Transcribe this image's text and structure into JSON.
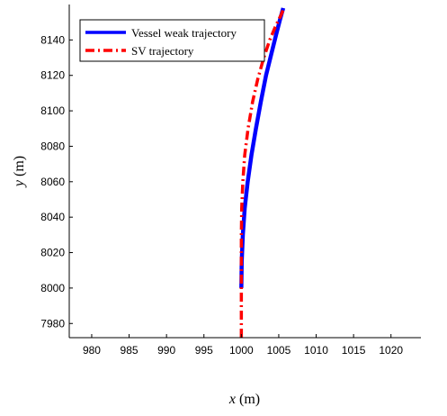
{
  "chart_data": {
    "type": "line",
    "title": "",
    "xlabel": {
      "var": "x",
      "unit": "(m)"
    },
    "ylabel": {
      "var": "y",
      "unit": "(m)"
    },
    "xlim": [
      977,
      1024
    ],
    "ylim": [
      7972,
      8160
    ],
    "xticks": [
      980,
      985,
      990,
      995,
      1000,
      1005,
      1010,
      1015,
      1020
    ],
    "yticks": [
      7980,
      8000,
      8020,
      8040,
      8060,
      8080,
      8100,
      8120,
      8140
    ],
    "grid": false,
    "legend_position": "top-left",
    "series": [
      {
        "name": "Vessel weak trajectory",
        "color": "#0000ff",
        "style": "solid",
        "x": [
          1000.0,
          1000.05,
          1000.2,
          1000.45,
          1000.85,
          1001.35,
          1001.95,
          1002.6,
          1003.3,
          1004.0,
          1004.65,
          1005.2,
          1005.6
        ],
        "y": [
          8000,
          8015,
          8030,
          8045,
          8060,
          8075,
          8090,
          8105,
          8120,
          8132,
          8143,
          8152,
          8158
        ]
      },
      {
        "name": "SV trajectory",
        "color": "#ff0000",
        "style": "dashdot",
        "x": [
          1000.0,
          1000.0,
          1000.0,
          1000.0,
          1000.05,
          1000.2,
          1000.45,
          1000.9,
          1001.5,
          1002.2,
          1003.0,
          1003.8,
          1004.6,
          1005.3,
          1005.7
        ],
        "y": [
          7972,
          7990,
          8010,
          8030,
          8045,
          8060,
          8075,
          8090,
          8105,
          8118,
          8130,
          8140,
          8148,
          8154,
          8158
        ]
      }
    ]
  }
}
